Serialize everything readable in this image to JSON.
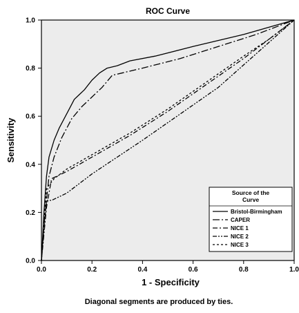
{
  "chart_data": {
    "type": "line",
    "title": "ROC Curve",
    "xlabel": "1 - Specificity",
    "ylabel": "Sensitivity",
    "xlim": [
      0,
      1
    ],
    "ylim": [
      0,
      1
    ],
    "xticks": [
      "0.0",
      "0.2",
      "0.4",
      "0.6",
      "0.8",
      "1.0"
    ],
    "yticks": [
      "0.0",
      "0.2",
      "0.4",
      "0.6",
      "0.8",
      "1.0"
    ],
    "grid": false,
    "background_color": "#ececec",
    "footnote": "Diagonal segments are produced by ties.",
    "legend": {
      "title_lines": [
        "Source of the",
        "Curve"
      ],
      "position": "bottom-right"
    },
    "series": [
      {
        "name": "Bristol-Birmingham",
        "dash": "solid",
        "x": [
          0.0,
          0.01,
          0.02,
          0.03,
          0.05,
          0.07,
          0.09,
          0.11,
          0.13,
          0.15,
          0.17,
          0.2,
          0.23,
          0.26,
          0.3,
          0.35,
          0.45,
          0.6,
          0.8,
          1.0
        ],
        "y": [
          0.0,
          0.2,
          0.35,
          0.43,
          0.5,
          0.55,
          0.59,
          0.63,
          0.67,
          0.69,
          0.71,
          0.75,
          0.78,
          0.8,
          0.81,
          0.83,
          0.85,
          0.89,
          0.94,
          1.0
        ]
      },
      {
        "name": "CAPER",
        "dash": "long-dash-dot",
        "x": [
          0.0,
          0.01,
          0.02,
          0.03,
          0.05,
          0.08,
          0.12,
          0.16,
          0.2,
          0.24,
          0.28,
          0.32,
          0.4,
          0.55,
          0.7,
          0.85,
          1.0
        ],
        "y": [
          0.0,
          0.15,
          0.25,
          0.35,
          0.43,
          0.51,
          0.59,
          0.64,
          0.68,
          0.72,
          0.77,
          0.78,
          0.8,
          0.84,
          0.89,
          0.94,
          1.0
        ]
      },
      {
        "name": "NICE 1",
        "dash": "dash-dot",
        "x": [
          0.0,
          0.02,
          0.04,
          0.1,
          0.2,
          0.35,
          0.5,
          0.65,
          0.8,
          0.9,
          1.0
        ],
        "y": [
          0.0,
          0.22,
          0.34,
          0.37,
          0.43,
          0.52,
          0.62,
          0.73,
          0.84,
          0.92,
          1.0
        ]
      },
      {
        "name": "NICE 2",
        "dash": "dash-dot-dot",
        "x": [
          0.0,
          0.02,
          0.04,
          0.1,
          0.2,
          0.3,
          0.4,
          0.55,
          0.7,
          0.85,
          1.0
        ],
        "y": [
          0.0,
          0.25,
          0.25,
          0.28,
          0.36,
          0.43,
          0.5,
          0.61,
          0.72,
          0.86,
          1.0
        ]
      },
      {
        "name": "NICE 3",
        "dash": "short-dash",
        "x": [
          0.0,
          0.02,
          0.05,
          0.1,
          0.2,
          0.35,
          0.5,
          0.65,
          0.8,
          0.9,
          1.0
        ],
        "y": [
          0.0,
          0.3,
          0.34,
          0.38,
          0.44,
          0.53,
          0.63,
          0.74,
          0.85,
          0.92,
          1.0
        ]
      }
    ]
  }
}
